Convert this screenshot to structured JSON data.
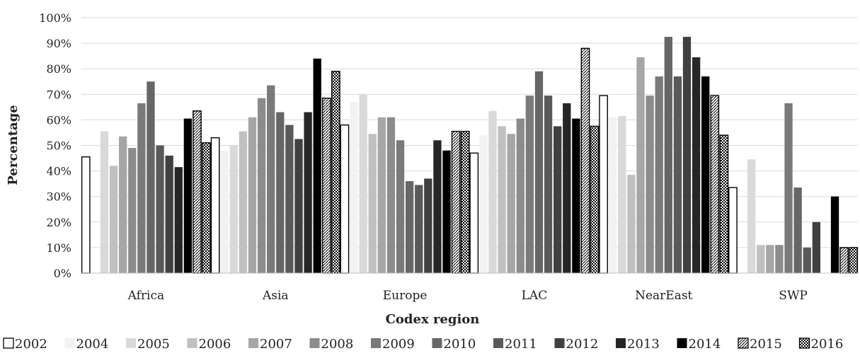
{
  "chart_data": {
    "type": "bar",
    "title": "",
    "xlabel": "Codex region",
    "ylabel": "Percentage",
    "ylim": [
      0,
      100
    ],
    "yticks": [
      "0%",
      "10%",
      "20%",
      "30%",
      "40%",
      "50%",
      "60%",
      "70%",
      "80%",
      "90%",
      "100%"
    ],
    "grid": "horizontal",
    "legend_position": "bottom",
    "categories": [
      "Africa",
      "Asia",
      "Europe",
      "LAC",
      "NearEast",
      "SWP"
    ],
    "series": [
      {
        "name": "2002",
        "pattern": "outline",
        "color": "#ffffff",
        "values": [
          45.5,
          53,
          58,
          47,
          69.5,
          33.5
        ]
      },
      {
        "name": "2004",
        "pattern": "solid",
        "color": "#f2f2f2",
        "values": [
          0,
          48,
          67,
          54,
          61,
          0
        ]
      },
      {
        "name": "2005",
        "pattern": "solid",
        "color": "#d9d9d9",
        "values": [
          55.5,
          50,
          70,
          63.5,
          61.5,
          44.5
        ]
      },
      {
        "name": "2006",
        "pattern": "solid",
        "color": "#c0c0c0",
        "values": [
          42,
          55.5,
          54.5,
          57.5,
          38.5,
          11
        ]
      },
      {
        "name": "2007",
        "pattern": "solid",
        "color": "#a6a6a6",
        "values": [
          53.5,
          61,
          61,
          54.5,
          84.5,
          11
        ]
      },
      {
        "name": "2008",
        "pattern": "solid",
        "color": "#8c8c8c",
        "values": [
          49,
          68.5,
          61,
          60.5,
          69.5,
          11
        ]
      },
      {
        "name": "2009",
        "pattern": "solid",
        "color": "#7a7a7a",
        "values": [
          66.5,
          73.5,
          52,
          69.5,
          77,
          66.5
        ]
      },
      {
        "name": "2010",
        "pattern": "solid",
        "color": "#666666",
        "values": [
          75,
          63,
          36,
          79,
          92.5,
          33.5
        ]
      },
      {
        "name": "2011",
        "pattern": "solid",
        "color": "#595959",
        "values": [
          50,
          58,
          34.5,
          69.5,
          77,
          10
        ]
      },
      {
        "name": "2012",
        "pattern": "solid",
        "color": "#404040",
        "values": [
          46,
          52.5,
          37,
          57.5,
          92.5,
          20
        ]
      },
      {
        "name": "2013",
        "pattern": "solid",
        "color": "#262626",
        "values": [
          41.5,
          63,
          52,
          66.5,
          84.5,
          0
        ]
      },
      {
        "name": "2014",
        "pattern": "solid",
        "color": "#000000",
        "values": [
          60.5,
          84,
          48,
          60.5,
          77,
          30
        ]
      },
      {
        "name": "2015",
        "pattern": "diagonal-dots",
        "color": "#ffffff",
        "values": [
          63.5,
          68.5,
          55.5,
          88,
          69.5,
          10
        ]
      },
      {
        "name": "2016",
        "pattern": "checker",
        "color": "#ffffff",
        "values": [
          51,
          79,
          55.5,
          57.5,
          54,
          10
        ]
      }
    ]
  }
}
